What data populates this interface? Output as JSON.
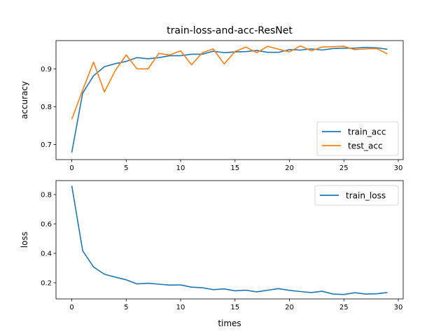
{
  "chart_data": [
    {
      "type": "line",
      "title": "train-loss-and-acc-ResNet",
      "xlabel": "",
      "ylabel": "accuracy",
      "xlim": [
        -1.45,
        30.45
      ],
      "ylim": [
        0.66,
        0.975
      ],
      "xticks": [
        0,
        5,
        10,
        15,
        20,
        25,
        30
      ],
      "yticks": [
        0.7,
        0.8,
        0.9
      ],
      "ytick_labels": [
        "0.7",
        "0.8",
        "0.9"
      ],
      "legend": "lower-right",
      "x": [
        0,
        1,
        2,
        3,
        4,
        5,
        6,
        7,
        8,
        9,
        10,
        11,
        12,
        13,
        14,
        15,
        16,
        17,
        18,
        19,
        20,
        21,
        22,
        23,
        24,
        25,
        26,
        27,
        28,
        29
      ],
      "series": [
        {
          "name": "train_acc",
          "color": "#1f77b4",
          "values": [
            0.679,
            0.836,
            0.882,
            0.906,
            0.914,
            0.92,
            0.93,
            0.927,
            0.93,
            0.935,
            0.935,
            0.939,
            0.939,
            0.947,
            0.943,
            0.945,
            0.946,
            0.949,
            0.944,
            0.944,
            0.951,
            0.95,
            0.953,
            0.95,
            0.954,
            0.955,
            0.955,
            0.957,
            0.956,
            0.952
          ]
        },
        {
          "name": "test_acc",
          "color": "#ff7f0e",
          "values": [
            0.767,
            0.844,
            0.918,
            0.839,
            0.896,
            0.937,
            0.9,
            0.9,
            0.941,
            0.937,
            0.948,
            0.911,
            0.943,
            0.953,
            0.913,
            0.946,
            0.958,
            0.943,
            0.96,
            0.952,
            0.945,
            0.961,
            0.948,
            0.958,
            0.959,
            0.96,
            0.951,
            0.953,
            0.954,
            0.94
          ]
        }
      ]
    },
    {
      "type": "line",
      "title": "",
      "xlabel": "times",
      "ylabel": "loss",
      "xlim": [
        -1.45,
        30.45
      ],
      "ylim": [
        0.09,
        0.895
      ],
      "xticks": [
        0,
        5,
        10,
        15,
        20,
        25,
        30
      ],
      "yticks": [
        0.2,
        0.4,
        0.6,
        0.8
      ],
      "ytick_labels": [
        "0.2",
        "0.4",
        "0.6",
        "0.8"
      ],
      "legend": "top-right",
      "x": [
        0,
        1,
        2,
        3,
        4,
        5,
        6,
        7,
        8,
        9,
        10,
        11,
        12,
        13,
        14,
        15,
        16,
        17,
        18,
        19,
        20,
        21,
        22,
        23,
        24,
        25,
        26,
        27,
        28,
        29
      ],
      "series": [
        {
          "name": "train_loss",
          "color": "#1f77b4",
          "values": [
            0.86,
            0.418,
            0.307,
            0.258,
            0.238,
            0.22,
            0.192,
            0.197,
            0.19,
            0.184,
            0.185,
            0.17,
            0.166,
            0.153,
            0.158,
            0.145,
            0.149,
            0.138,
            0.149,
            0.16,
            0.148,
            0.14,
            0.133,
            0.142,
            0.123,
            0.12,
            0.132,
            0.123,
            0.125,
            0.133
          ]
        }
      ]
    }
  ]
}
